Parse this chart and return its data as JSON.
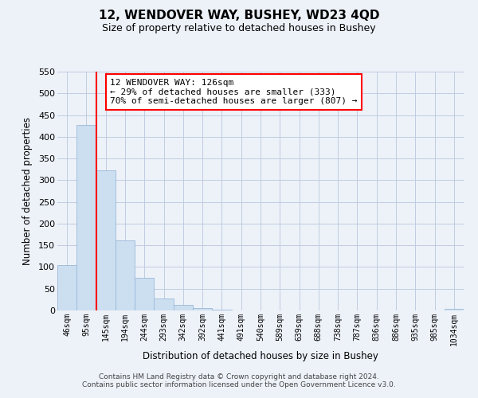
{
  "title": "12, WENDOVER WAY, BUSHEY, WD23 4QD",
  "subtitle": "Size of property relative to detached houses in Bushey",
  "xlabel": "Distribution of detached houses by size in Bushey",
  "ylabel": "Number of detached properties",
  "bin_labels": [
    "46sqm",
    "95sqm",
    "145sqm",
    "194sqm",
    "244sqm",
    "293sqm",
    "342sqm",
    "392sqm",
    "441sqm",
    "491sqm",
    "540sqm",
    "589sqm",
    "639sqm",
    "688sqm",
    "738sqm",
    "787sqm",
    "836sqm",
    "886sqm",
    "935sqm",
    "985sqm",
    "1034sqm"
  ],
  "bar_values": [
    105,
    428,
    322,
    162,
    75,
    27,
    13,
    5,
    2,
    0,
    0,
    0,
    0,
    0,
    0,
    0,
    0,
    0,
    0,
    0,
    3
  ],
  "bar_color": "#ccdff0",
  "bar_edge_color": "#9ab8d8",
  "vline_x": 1.5,
  "vline_color": "red",
  "vline_linewidth": 1.5,
  "annotation_title": "12 WENDOVER WAY: 126sqm",
  "annotation_line1": "← 29% of detached houses are smaller (333)",
  "annotation_line2": "70% of semi-detached houses are larger (807) →",
  "annotation_box_color": "white",
  "annotation_box_edge": "red",
  "ylim": [
    0,
    550
  ],
  "yticks": [
    0,
    50,
    100,
    150,
    200,
    250,
    300,
    350,
    400,
    450,
    500,
    550
  ],
  "grid_color": "#c0cce0",
  "footer1": "Contains HM Land Registry data © Crown copyright and database right 2024.",
  "footer2": "Contains public sector information licensed under the Open Government Licence v3.0.",
  "bg_color": "#edf2f9"
}
